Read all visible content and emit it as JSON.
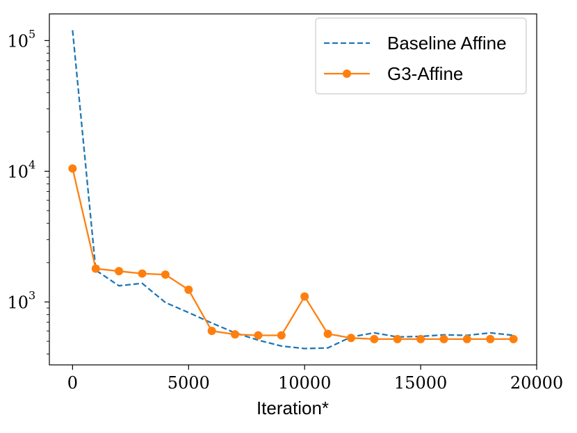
{
  "chart_data": {
    "type": "line",
    "title": "",
    "xlabel": "Iteration*",
    "ylabel": "",
    "yscale": "log",
    "xlim": [
      -1000,
      20000
    ],
    "ylim": [
      330,
      160000
    ],
    "grid": false,
    "legend_position": "upper-right",
    "x_ticks": [
      {
        "value": 0,
        "label": "0"
      },
      {
        "value": 5000,
        "label": "5000"
      },
      {
        "value": 10000,
        "label": "10000"
      },
      {
        "value": 15000,
        "label": "15000"
      },
      {
        "value": 20000,
        "label": "20000"
      }
    ],
    "y_ticks": [
      {
        "value": 1000,
        "base": "10",
        "exp": "3"
      },
      {
        "value": 10000,
        "base": "10",
        "exp": "4"
      },
      {
        "value": 100000,
        "base": "10",
        "exp": "5"
      }
    ],
    "series": [
      {
        "name": "Baseline Affine",
        "color": "#1f77b4",
        "style": "dashed",
        "marker": "none",
        "x": [
          0,
          1000,
          2000,
          3000,
          4000,
          5000,
          6000,
          7000,
          8000,
          9000,
          10000,
          11000,
          12000,
          13000,
          14000,
          15000,
          16000,
          17000,
          18000,
          19000
        ],
        "values": [
          120000,
          1750,
          1330,
          1390,
          990,
          830,
          690,
          580,
          510,
          460,
          440,
          445,
          540,
          580,
          540,
          545,
          560,
          555,
          580,
          555
        ]
      },
      {
        "name": "G3-Affine",
        "color": "#ff7f0e",
        "style": "solid",
        "marker": "circle",
        "x": [
          0,
          1000,
          2000,
          3000,
          4000,
          5000,
          6000,
          7000,
          8000,
          9000,
          10000,
          11000,
          12000,
          13000,
          14000,
          15000,
          16000,
          17000,
          18000,
          19000
        ],
        "values": [
          10500,
          1800,
          1720,
          1650,
          1620,
          1240,
          600,
          565,
          555,
          555,
          1100,
          570,
          530,
          520,
          520,
          520,
          520,
          520,
          520,
          520
        ]
      }
    ]
  }
}
